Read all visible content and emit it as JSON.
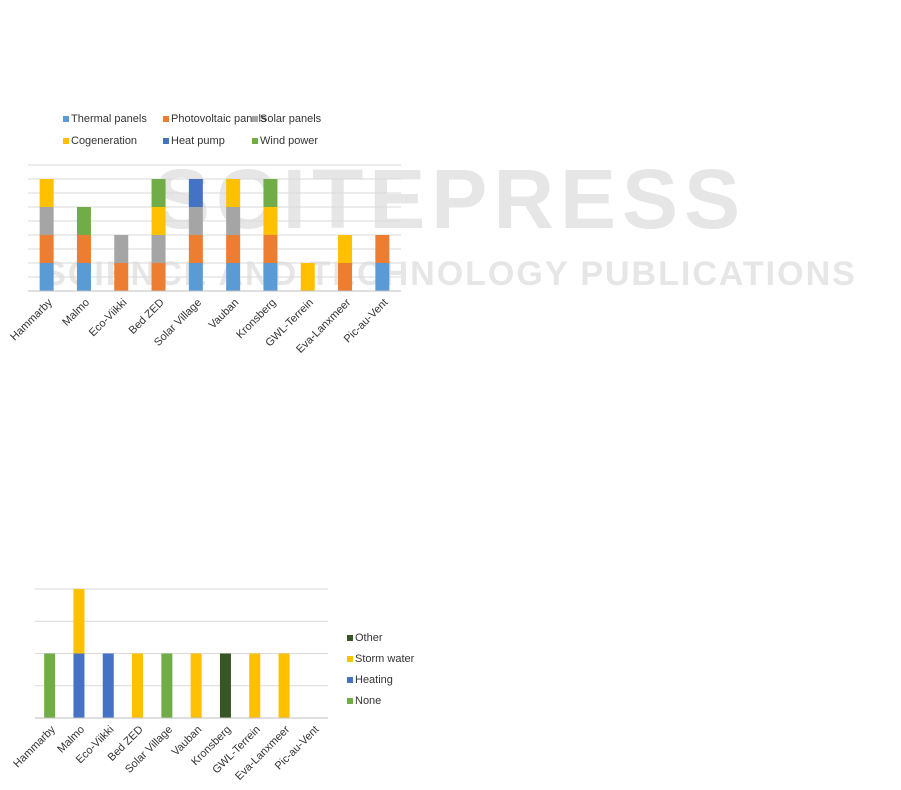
{
  "watermark": {
    "title": "SCITEPRESS",
    "subtitle": "SCIENCE AND TECHNOLOGY PUBLICATIONS"
  },
  "chart_data": [
    {
      "type": "stacked-bar",
      "categories": [
        "Hammarby",
        "Malmo",
        "Eco-Viikki",
        "Bed ZED",
        "Solar Village",
        "Vauban",
        "Kronsberg",
        "GWL-Terrein",
        "Eva-Lanxmeer",
        "Pic-au-Vent"
      ],
      "series": [
        {
          "name": "Thermal panels",
          "color": "#5b9bd5",
          "values": [
            1,
            1,
            null,
            null,
            1,
            1,
            1,
            null,
            null,
            1
          ]
        },
        {
          "name": "Photovoltaic panels",
          "color": "#ed7d31",
          "values": [
            1,
            1,
            1,
            1,
            1,
            1,
            1,
            null,
            1,
            1
          ]
        },
        {
          "name": "Solar panels",
          "color": "#a5a5a5",
          "values": [
            1,
            null,
            1,
            1,
            1,
            1,
            null,
            null,
            null,
            null
          ]
        },
        {
          "name": "Cogeneration",
          "color": "#ffc000",
          "values": [
            1,
            null,
            null,
            1,
            null,
            1,
            1,
            1,
            1,
            null
          ]
        },
        {
          "name": "Heat pump",
          "color": "#4472c4",
          "values": [
            null,
            null,
            null,
            null,
            1,
            null,
            null,
            null,
            null,
            null
          ]
        },
        {
          "name": "Wind power",
          "color": "#70ad47",
          "values": [
            null,
            1,
            null,
            1,
            null,
            null,
            1,
            null,
            null,
            null
          ]
        }
      ],
      "ylim": [
        0,
        4.5
      ],
      "yticks": [
        0,
        0.5,
        1,
        1.5,
        2,
        2.5,
        3,
        3.5,
        4,
        4.5
      ],
      "grid": true,
      "legend": "top"
    },
    {
      "type": "stacked-bar",
      "categories": [
        "Hammarby",
        "Malmo",
        "Eco-Viikki",
        "Bed ZED",
        "Solar Village",
        "Vauban",
        "Kronsberg",
        "GWL-Terrein",
        "Eva-Lanxmeer",
        "Pic-au-Vent"
      ],
      "series": [
        {
          "name": "None",
          "color": "#70ad47",
          "values": [
            1,
            null,
            null,
            null,
            1,
            null,
            null,
            null,
            null,
            null
          ]
        },
        {
          "name": "Heating",
          "color": "#4472c4",
          "values": [
            null,
            1,
            1,
            null,
            null,
            null,
            null,
            null,
            null,
            null
          ]
        },
        {
          "name": "Storm water",
          "color": "#ffc000",
          "values": [
            null,
            1,
            null,
            1,
            null,
            1,
            null,
            1,
            1,
            null
          ]
        },
        {
          "name": "Other",
          "color": "#375623",
          "values": [
            null,
            null,
            null,
            null,
            null,
            null,
            1,
            null,
            null,
            null
          ]
        }
      ],
      "ylim": [
        0,
        2
      ],
      "yticks": [
        0,
        0.5,
        1,
        1.5,
        2
      ],
      "grid": true,
      "legend": "right"
    }
  ]
}
